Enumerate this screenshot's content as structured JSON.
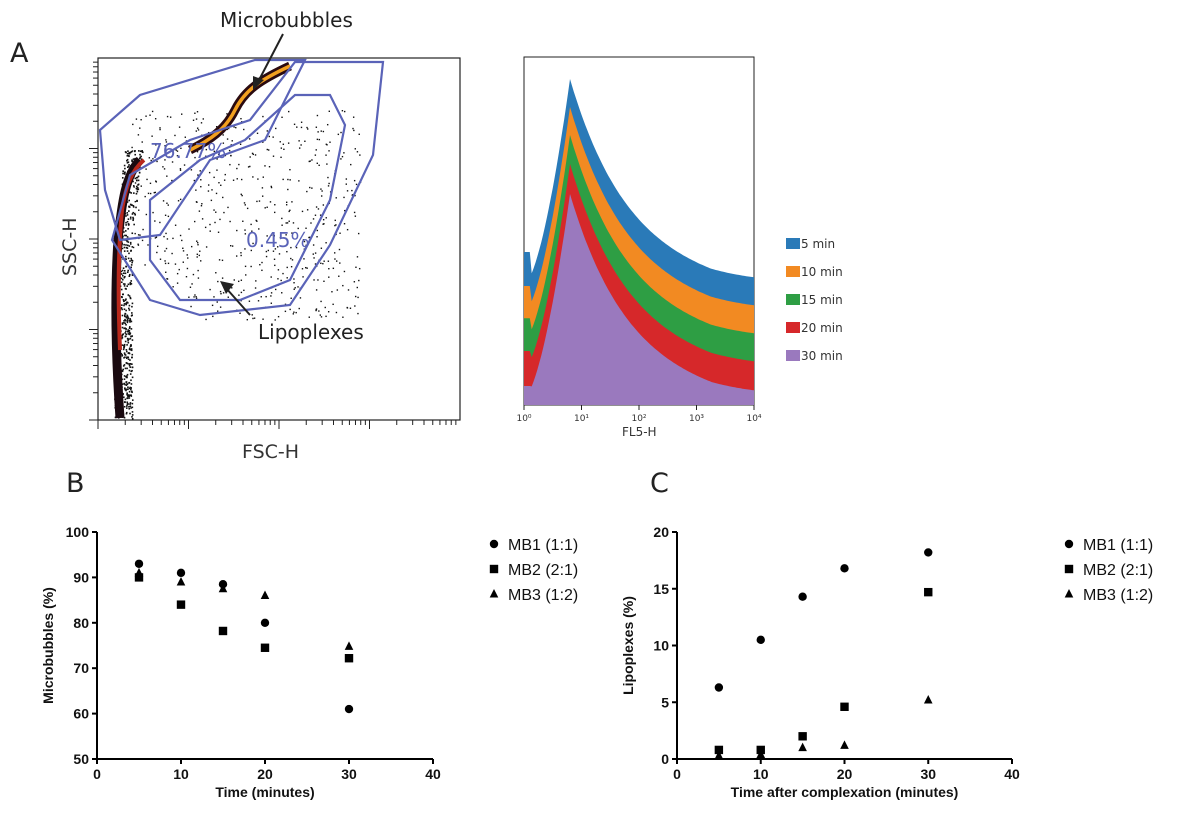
{
  "panels": {
    "a": "A",
    "b": "B",
    "c": "C"
  },
  "colors": {
    "gate": "#5a63b8",
    "hist_5": "#2a7ab8",
    "hist_10": "#f28a22",
    "hist_15": "#2e9e44",
    "hist_20": "#d6282a",
    "hist_30": "#9a79be"
  },
  "flow_plot": {
    "x_label": "FSC-H",
    "y_label": "SSC-H",
    "gate_microbubbles_pct": "76.77%",
    "gate_lipoplexes_pct": "0.45%",
    "annotation_microbubbles": "Microbubbles",
    "annotation_lipoplexes": "Lipoplexes"
  },
  "histogram": {
    "x_label": "FL5-H",
    "x_ticks": [
      "10⁰",
      "10¹",
      "10²",
      "10³",
      "10⁴"
    ],
    "legend": [
      "5 min",
      "10 min",
      "15 min",
      "20 min",
      "30 min"
    ]
  },
  "legend_b": [
    "MB1 (1:1)",
    "MB2 (2:1)",
    "MB3 (1:2)"
  ],
  "legend_c": [
    "MB1 (1:1)",
    "MB2 (2:1)",
    "MB3 (1:2)"
  ],
  "chart_data": [
    {
      "type": "scatter",
      "panel": "B",
      "xlabel": "Time (minutes)",
      "ylabel": "Microbubbles (%)",
      "xlim": [
        0,
        40
      ],
      "ylim": [
        50,
        100
      ],
      "x_ticks": [
        0,
        10,
        20,
        30,
        40
      ],
      "y_ticks": [
        50,
        60,
        70,
        80,
        90,
        100
      ],
      "series": [
        {
          "name": "MB1 (1:1)",
          "marker": "circle",
          "x": [
            5,
            10,
            15,
            20,
            30
          ],
          "y": [
            93,
            91,
            88.5,
            80,
            61
          ]
        },
        {
          "name": "MB2 (2:1)",
          "marker": "square",
          "x": [
            5,
            10,
            15,
            20,
            30
          ],
          "y": [
            90,
            84,
            78.2,
            74.5,
            72.2
          ]
        },
        {
          "name": "MB3 (1:2)",
          "marker": "triangle",
          "x": [
            5,
            10,
            15,
            20,
            30
          ],
          "y": [
            91,
            89,
            87.5,
            86,
            74.8
          ]
        }
      ]
    },
    {
      "type": "scatter",
      "panel": "C",
      "xlabel": "Time after complexation (minutes)",
      "ylabel": "Lipoplexes (%)",
      "xlim": [
        0,
        40
      ],
      "ylim": [
        0,
        20
      ],
      "x_ticks": [
        0,
        10,
        20,
        30,
        40
      ],
      "y_ticks": [
        0,
        5,
        10,
        15,
        20
      ],
      "series": [
        {
          "name": "MB1 (1:1)",
          "marker": "circle",
          "x": [
            5,
            10,
            15,
            20,
            30
          ],
          "y": [
            6.3,
            10.5,
            14.3,
            16.8,
            18.2
          ]
        },
        {
          "name": "MB2 (2:1)",
          "marker": "square",
          "x": [
            5,
            10,
            15,
            20,
            30
          ],
          "y": [
            0.8,
            0.8,
            2.0,
            4.6,
            14.7
          ]
        },
        {
          "name": "MB3 (1:2)",
          "marker": "triangle",
          "x": [
            5,
            10,
            15,
            20,
            30
          ],
          "y": [
            0.3,
            0.4,
            1.0,
            1.2,
            5.2
          ]
        }
      ]
    }
  ]
}
